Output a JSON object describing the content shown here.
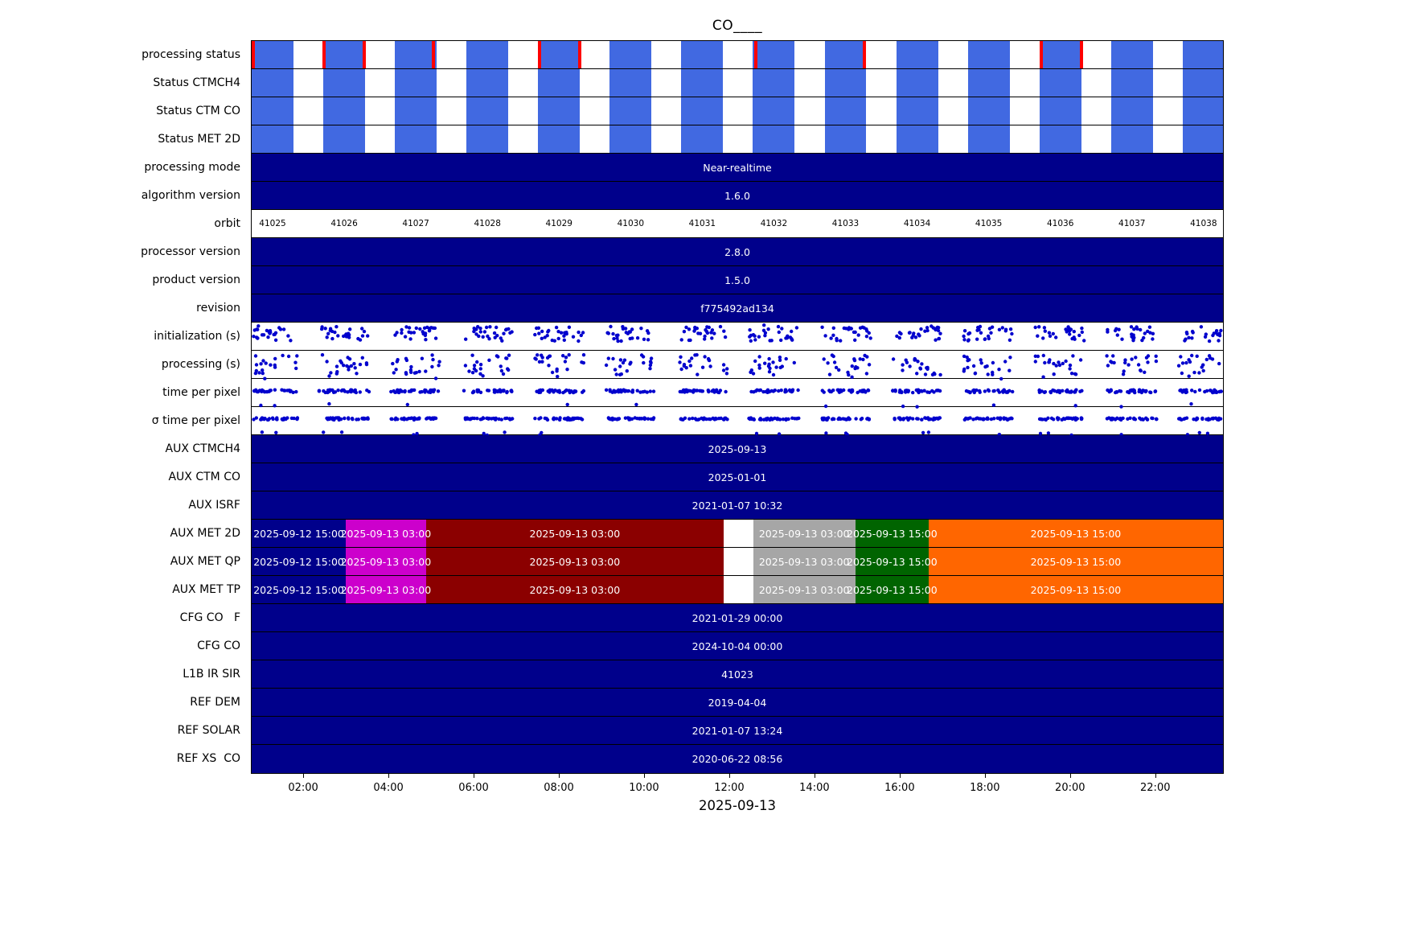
{
  "chart_data": {
    "type": "heatmap",
    "subtype": "orbit-processing-status-timeline",
    "title": "CO____",
    "axis": {
      "start_hour": 0.79,
      "end_hour": 23.59,
      "date_label": "2025-09-13",
      "tick_hours": [
        2,
        4,
        6,
        8,
        10,
        12,
        14,
        16,
        18,
        20,
        22
      ],
      "ticks": [
        "02:00",
        "04:00",
        "06:00",
        "08:00",
        "10:00",
        "12:00",
        "14:00",
        "16:00",
        "18:00",
        "20:00",
        "22:00"
      ]
    },
    "orbit": {
      "numbers": [
        "41025",
        "41026",
        "41027",
        "41028",
        "41029",
        "41030",
        "41031",
        "41032",
        "41033",
        "41034",
        "41035",
        "41036",
        "41037",
        "41038"
      ],
      "first_start_hour": 0.79,
      "period_hours": 1.681,
      "block_width_hours": 0.981
    },
    "red_mark_hours": [
      0.83,
      2.49,
      3.43,
      5.05,
      7.55,
      8.5,
      12.63,
      15.17,
      19.33,
      20.27
    ],
    "met_segments": [
      {
        "color_key": "navy",
        "text": "2025-09-12 15:00",
        "from_hour": 0.79,
        "to_hour": 3.0
      },
      {
        "color_key": "magenta",
        "text": "2025-09-13 03:00",
        "from_hour": 3.0,
        "to_hour": 4.88
      },
      {
        "color_key": "dark_red",
        "text": "2025-09-13 03:00",
        "from_hour": 4.88,
        "to_hour": 11.87
      },
      {
        "color_key": "white",
        "text": "",
        "from_hour": 11.87,
        "to_hour": 12.56
      },
      {
        "color_key": "gray",
        "text": "2025-09-13 03:00",
        "from_hour": 12.56,
        "to_hour": 14.96
      },
      {
        "color_key": "green",
        "text": "2025-09-13 15:00",
        "from_hour": 14.96,
        "to_hour": 16.68
      },
      {
        "color_key": "orange",
        "text": "2025-09-13 15:00",
        "from_hour": 16.68,
        "to_hour": 23.59
      }
    ],
    "scatter_defs": {
      "init": {
        "points_per_orbit": 26,
        "y_center": 0.4,
        "y_jitter": 0.26,
        "top_outliers": 2,
        "bottom_outliers": 0
      },
      "proc": {
        "points_per_orbit": 22,
        "y_center": 0.5,
        "y_jitter": 0.36,
        "top_outliers": 0,
        "bottom_outliers": 1
      },
      "tpp": {
        "points_per_orbit": 30,
        "y_center": 0.44,
        "y_jitter": 0.05,
        "top_outliers": 0,
        "bottom_outliers": 2
      },
      "stpp": {
        "points_per_orbit": 32,
        "y_center": 0.42,
        "y_jitter": 0.035,
        "top_outliers": 0,
        "bottom_outliers": 3
      }
    },
    "rows": [
      {
        "label": "processing status",
        "type": "blocks",
        "with_red_marks": true
      },
      {
        "label": "Status CTMCH4",
        "type": "blocks"
      },
      {
        "label": "Status CTM CO",
        "type": "blocks"
      },
      {
        "label": "Status MET 2D",
        "type": "blocks"
      },
      {
        "label": "processing mode",
        "type": "bar",
        "value": "Near-realtime"
      },
      {
        "label": "algorithm version",
        "type": "bar",
        "value": "1.6.0"
      },
      {
        "label": "orbit",
        "type": "orbit"
      },
      {
        "label": "processor version",
        "type": "bar",
        "value": "2.8.0"
      },
      {
        "label": "product version",
        "type": "bar",
        "value": "1.5.0"
      },
      {
        "label": "revision",
        "type": "bar",
        "value": "f775492ad134"
      },
      {
        "label": "initialization (s)",
        "type": "scatter",
        "scatter_key": "init"
      },
      {
        "label": "processing (s)",
        "type": "scatter",
        "scatter_key": "proc"
      },
      {
        "label": "time per pixel",
        "type": "scatter",
        "scatter_key": "tpp"
      },
      {
        "label": "σ time per pixel",
        "type": "scatter",
        "scatter_key": "stpp"
      },
      {
        "label": "AUX CTMCH4",
        "type": "bar",
        "value": "2025-09-13"
      },
      {
        "label": "AUX CTM CO",
        "type": "bar",
        "value": "2025-01-01"
      },
      {
        "label": "AUX ISRF",
        "type": "bar",
        "value": "2021-01-07 10:32"
      },
      {
        "label": "AUX MET 2D",
        "type": "segments"
      },
      {
        "label": "AUX MET QP",
        "type": "segments"
      },
      {
        "label": "AUX MET TP",
        "type": "segments"
      },
      {
        "label": "CFG CO   F",
        "type": "bar",
        "value": "2021-01-29 00:00"
      },
      {
        "label": "CFG CO",
        "type": "bar",
        "value": "2024-10-04 00:00"
      },
      {
        "label": "L1B IR SIR",
        "type": "bar",
        "value": "41023"
      },
      {
        "label": "REF DEM",
        "type": "bar",
        "value": "2019-04-04"
      },
      {
        "label": "REF SOLAR",
        "type": "bar",
        "value": "2021-01-07 13:24"
      },
      {
        "label": "REF XS  CO",
        "type": "bar",
        "value": "2020-06-22 08:56"
      }
    ],
    "colors": {
      "block_blue": "#4169E1",
      "navy": "#00008B",
      "red": "#FF0000",
      "magenta": "#CC00CC",
      "dark_red": "#8B0000",
      "white": "#FFFFFF",
      "gray": "#A6A6A6",
      "green": "#006400",
      "orange": "#FF6600",
      "dot_blue": "#0000CD"
    }
  }
}
